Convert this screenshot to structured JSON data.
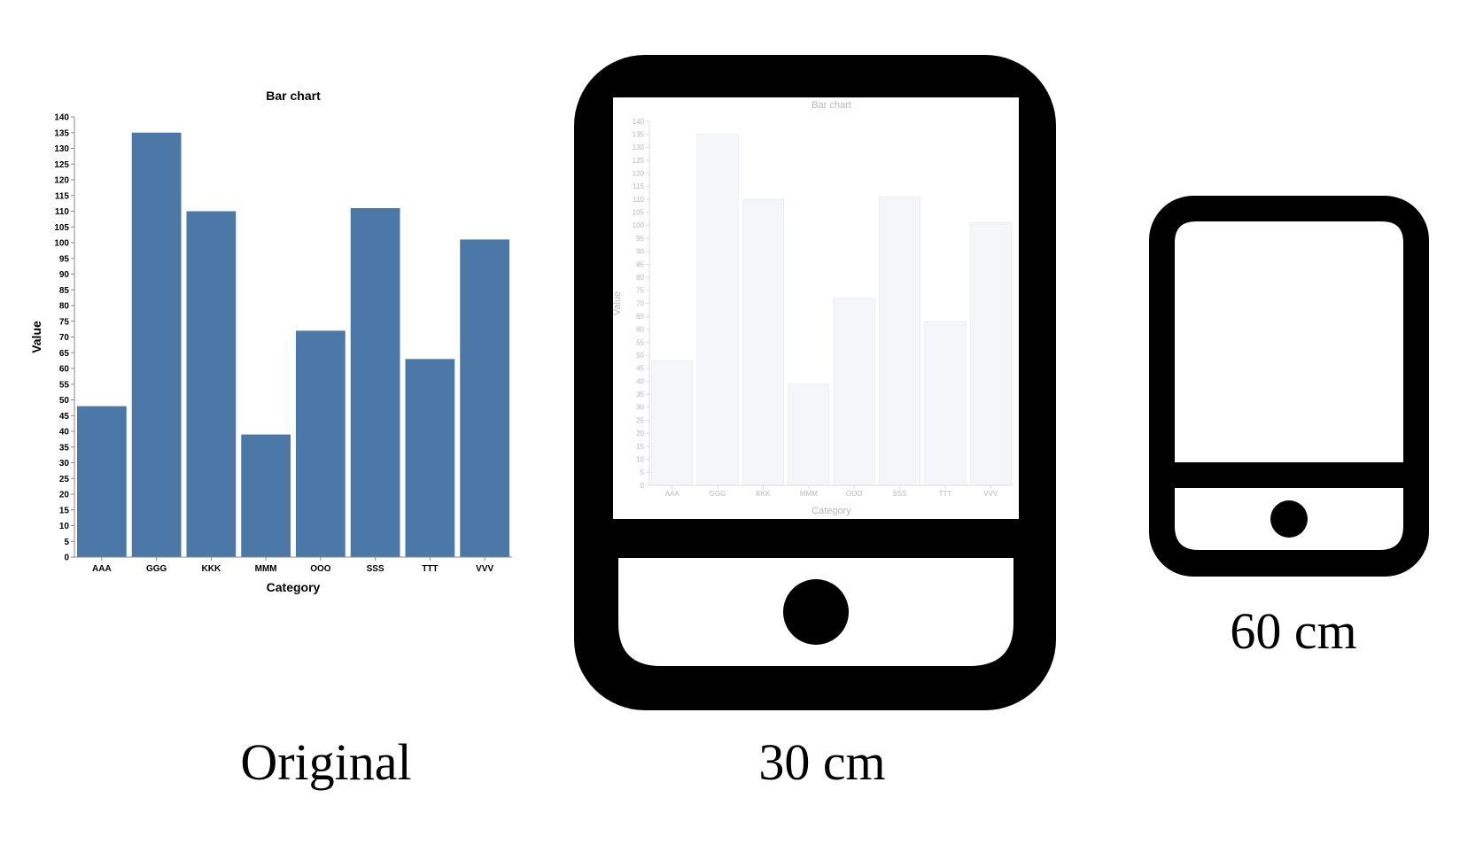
{
  "chart_data": {
    "type": "bar",
    "title": "Bar chart",
    "xlabel": "Category",
    "ylabel": "Value",
    "categories": [
      "AAA",
      "GGG",
      "KKK",
      "MMM",
      "OOO",
      "SSS",
      "TTT",
      "VVV"
    ],
    "values": [
      48,
      135,
      110,
      39,
      72,
      111,
      63,
      101
    ],
    "ylim": [
      0,
      140
    ],
    "ytick_step": 5,
    "grid": false,
    "bar_color": "#4c78a8"
  },
  "captions": {
    "original": "Original",
    "tablet": "30 cm",
    "phone": "60 cm"
  },
  "colors": {
    "device": "#000000",
    "screen": "#ffffff",
    "faded_text": "#b8b8b8",
    "faded_bar": "#f4f6fa"
  }
}
